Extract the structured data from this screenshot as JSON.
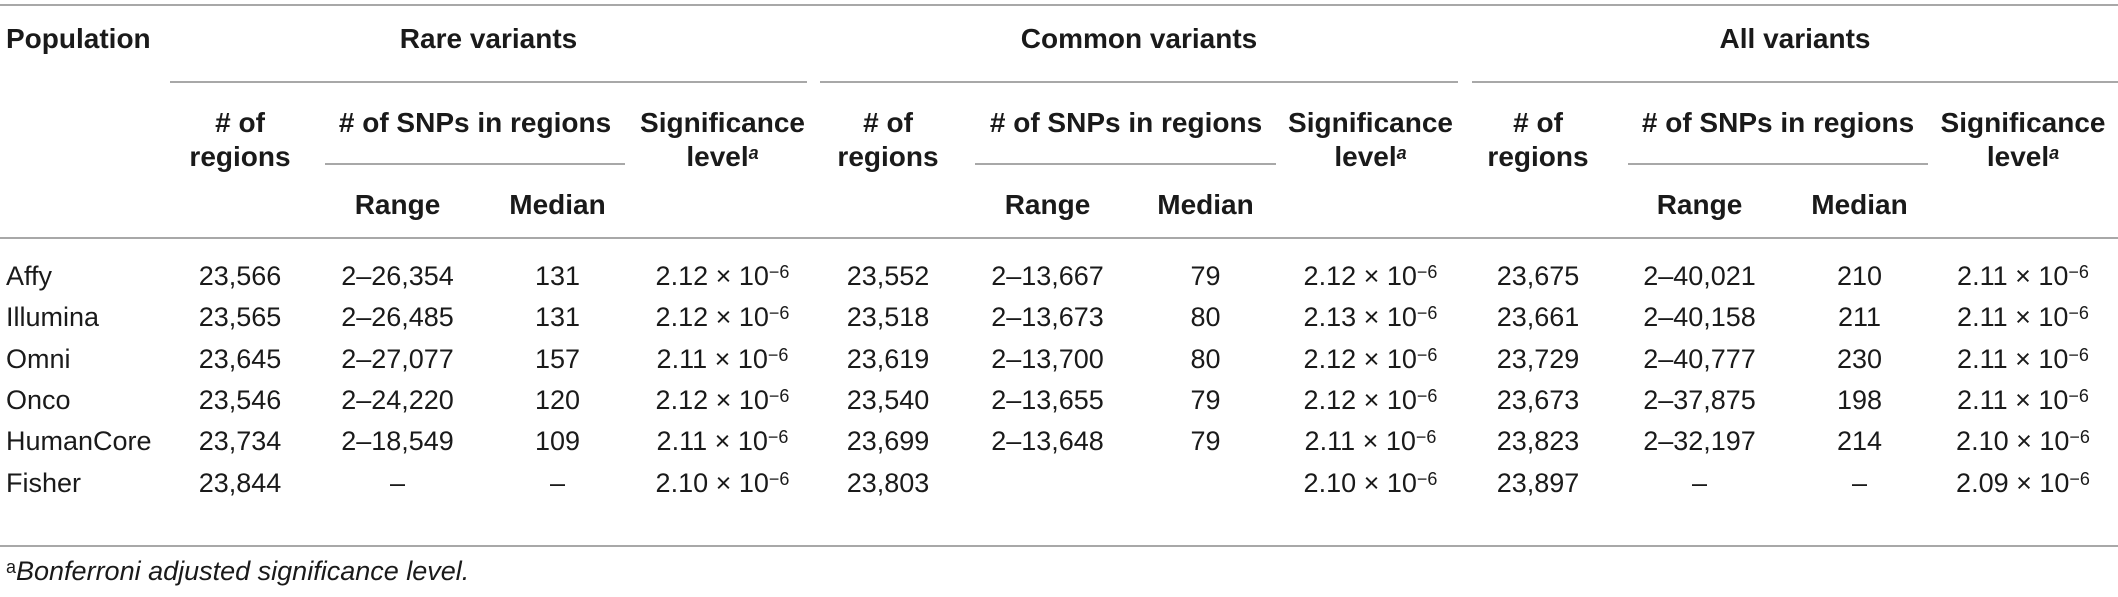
{
  "table": {
    "headers": {
      "population": "Population",
      "groups": [
        "Rare variants",
        "Common variants",
        "All variants"
      ],
      "num_regions": [
        "# of",
        "regions"
      ],
      "num_snps": "# of SNPs in regions",
      "range": "Range",
      "median": "Median",
      "significance": [
        "Significance",
        "level"
      ],
      "significance_sup": "a"
    },
    "rows": [
      {
        "population": "Affy",
        "rare": {
          "regions": "23,566",
          "range": "2–26,354",
          "median": "131",
          "sig": "2.12 × 10",
          "exp": "−6"
        },
        "common": {
          "regions": "23,552",
          "range": "2–13,667",
          "median": "79",
          "sig": "2.12 × 10",
          "exp": "−6"
        },
        "all": {
          "regions": "23,675",
          "range": "2–40,021",
          "median": "210",
          "sig": "2.11 × 10",
          "exp": "−6"
        }
      },
      {
        "population": "Illumina",
        "rare": {
          "regions": "23,565",
          "range": "2–26,485",
          "median": "131",
          "sig": "2.12 × 10",
          "exp": "−6"
        },
        "common": {
          "regions": "23,518",
          "range": "2–13,673",
          "median": "80",
          "sig": "2.13 × 10",
          "exp": "−6"
        },
        "all": {
          "regions": "23,661",
          "range": "2–40,158",
          "median": "211",
          "sig": "2.11 × 10",
          "exp": "−6"
        }
      },
      {
        "population": "Omni",
        "rare": {
          "regions": "23,645",
          "range": "2–27,077",
          "median": "157",
          "sig": "2.11 × 10",
          "exp": "−6"
        },
        "common": {
          "regions": "23,619",
          "range": "2–13,700",
          "median": "80",
          "sig": "2.12 × 10",
          "exp": "−6"
        },
        "all": {
          "regions": "23,729",
          "range": "2–40,777",
          "median": "230",
          "sig": "2.11 × 10",
          "exp": "−6"
        }
      },
      {
        "population": "Onco",
        "rare": {
          "regions": "23,546",
          "range": "2–24,220",
          "median": "120",
          "sig": "2.12 × 10",
          "exp": "−6"
        },
        "common": {
          "regions": "23,540",
          "range": "2–13,655",
          "median": "79",
          "sig": "2.12 × 10",
          "exp": "−6"
        },
        "all": {
          "regions": "23,673",
          "range": "2–37,875",
          "median": "198",
          "sig": "2.11 × 10",
          "exp": "−6"
        }
      },
      {
        "population": "HumanCore",
        "rare": {
          "regions": "23,734",
          "range": "2–18,549",
          "median": "109",
          "sig": "2.11 × 10",
          "exp": "−6"
        },
        "common": {
          "regions": "23,699",
          "range": "2–13,648",
          "median": "79",
          "sig": "2.11 × 10",
          "exp": "−6"
        },
        "all": {
          "regions": "23,823",
          "range": "2–32,197",
          "median": "214",
          "sig": "2.10 × 10",
          "exp": "−6"
        }
      },
      {
        "population": "Fisher",
        "rare": {
          "regions": "23,844",
          "range": "–",
          "median": "–",
          "sig": "2.10 × 10",
          "exp": "−6"
        },
        "common": {
          "regions": "23,803",
          "range": "",
          "median": "",
          "sig": "2.10 × 10",
          "exp": "−6"
        },
        "all": {
          "regions": "23,897",
          "range": "–",
          "median": "–",
          "sig": "2.09 × 10",
          "exp": "−6"
        }
      }
    ]
  },
  "footnote": {
    "marker": "a",
    "text": "Bonferroni adjusted significance level."
  }
}
